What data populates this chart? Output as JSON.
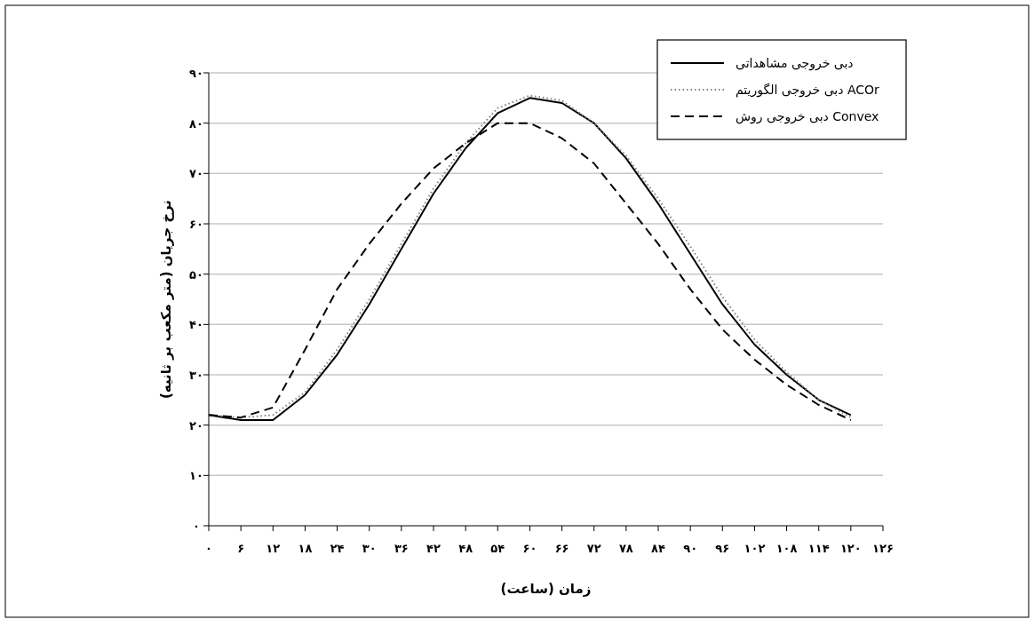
{
  "chart_data": {
    "type": "line",
    "xlabel": "زمان (ساعت)",
    "ylabel": "نرخ جریان (متر مکعب بر ثانیه)",
    "x": [
      0,
      6,
      12,
      18,
      24,
      30,
      36,
      42,
      48,
      54,
      60,
      66,
      72,
      78,
      84,
      90,
      96,
      102,
      108,
      114,
      120
    ],
    "series": [
      {
        "name": "دبی خروجی مشاهداتی",
        "color": "#000000",
        "line_style": "solid",
        "values": [
          22,
          21,
          21,
          26,
          34,
          44,
          55,
          66,
          75,
          82,
          85,
          84,
          80,
          73,
          64,
          54,
          44,
          36,
          30,
          25,
          22
        ]
      },
      {
        "name": "دبی خروجی الگوریتم ACOr",
        "color": "#808080",
        "line_style": "dotted",
        "values": [
          22,
          21.5,
          22,
          26.5,
          35,
          45,
          56,
          67,
          76,
          83,
          85.5,
          84.5,
          80,
          73.5,
          65,
          55.5,
          45.5,
          37,
          30.5,
          25,
          21.5
        ]
      },
      {
        "name": "دبی خروجی روش Convex",
        "color": "#000000",
        "line_style": "dashed",
        "values": [
          22,
          21.5,
          23.5,
          35,
          47,
          56,
          64,
          71,
          76,
          80,
          80,
          77,
          72,
          64,
          56,
          47,
          39,
          33,
          28,
          24,
          21
        ]
      }
    ],
    "xlim": [
      0,
      126
    ],
    "ylim": [
      0,
      90
    ],
    "xticks": [
      {
        "value": 0,
        "label": "۰"
      },
      {
        "value": 6,
        "label": "۶"
      },
      {
        "value": 12,
        "label": "۱۲"
      },
      {
        "value": 18,
        "label": "۱۸"
      },
      {
        "value": 24,
        "label": "۲۴"
      },
      {
        "value": 30,
        "label": "۳۰"
      },
      {
        "value": 36,
        "label": "۳۶"
      },
      {
        "value": 42,
        "label": "۴۲"
      },
      {
        "value": 48,
        "label": "۴۸"
      },
      {
        "value": 54,
        "label": "۵۴"
      },
      {
        "value": 60,
        "label": "۶۰"
      },
      {
        "value": 66,
        "label": "۶۶"
      },
      {
        "value": 72,
        "label": "۷۲"
      },
      {
        "value": 78,
        "label": "۷۸"
      },
      {
        "value": 84,
        "label": "۸۴"
      },
      {
        "value": 90,
        "label": "۹۰"
      },
      {
        "value": 96,
        "label": "۹۶"
      },
      {
        "value": 102,
        "label": "۱۰۲"
      },
      {
        "value": 108,
        "label": "۱۰۸"
      },
      {
        "value": 114,
        "label": "۱۱۴"
      },
      {
        "value": 120,
        "label": "۱۲۰"
      },
      {
        "value": 126,
        "label": "۱۲۶"
      }
    ],
    "yticks": [
      {
        "value": 0,
        "label": "۰"
      },
      {
        "value": 10,
        "label": "۱۰"
      },
      {
        "value": 20,
        "label": "۲۰"
      },
      {
        "value": 30,
        "label": "۳۰"
      },
      {
        "value": 40,
        "label": "۴۰"
      },
      {
        "value": 50,
        "label": "۵۰"
      },
      {
        "value": 60,
        "label": "۶۰"
      },
      {
        "value": 70,
        "label": "۷۰"
      },
      {
        "value": 80,
        "label": "۸۰"
      },
      {
        "value": 90,
        "label": "۹۰"
      }
    ],
    "grid": "y",
    "legend": "top right"
  }
}
